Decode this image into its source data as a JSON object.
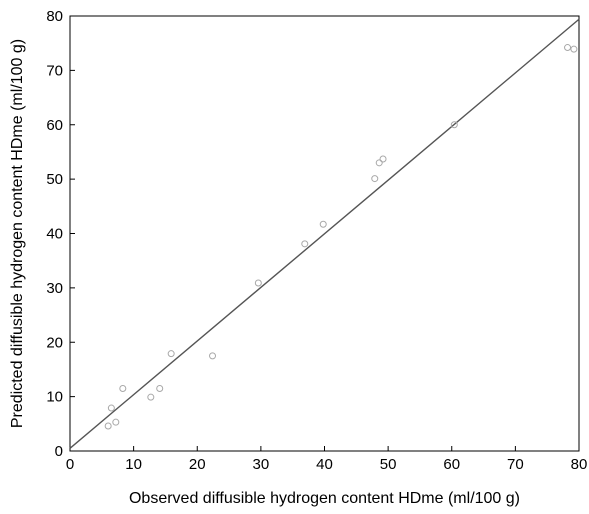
{
  "chart_data": {
    "type": "scatter",
    "title": "",
    "xlabel": "Observed diffusible hydrogen content HDme (ml/100 g)",
    "ylabel": "Predicted diffusible hydrogen content HDme (ml/100 g)",
    "xlim": [
      0,
      80
    ],
    "ylim": [
      0,
      80
    ],
    "x_ticks": [
      "0",
      "10",
      "20",
      "30",
      "40",
      "50",
      "60",
      "70",
      "80"
    ],
    "y_ticks": [
      "0",
      "10",
      "20",
      "30",
      "40",
      "50",
      "60",
      "70",
      "80"
    ],
    "grid": false,
    "legend": "none",
    "series": [
      {
        "points": [
          {
            "x": 6.0,
            "y": 4.6
          },
          {
            "x": 6.5,
            "y": 7.9
          },
          {
            "x": 7.2,
            "y": 5.3
          },
          {
            "x": 8.3,
            "y": 11.5
          },
          {
            "x": 12.7,
            "y": 9.9
          },
          {
            "x": 14.1,
            "y": 11.5
          },
          {
            "x": 15.9,
            "y": 17.9
          },
          {
            "x": 22.4,
            "y": 17.5
          },
          {
            "x": 29.6,
            "y": 30.9
          },
          {
            "x": 36.9,
            "y": 38.1
          },
          {
            "x": 39.8,
            "y": 41.7
          },
          {
            "x": 47.9,
            "y": 50.1
          },
          {
            "x": 48.6,
            "y": 53.0
          },
          {
            "x": 49.2,
            "y": 53.7
          },
          {
            "x": 60.4,
            "y": 60.0
          },
          {
            "x": 78.2,
            "y": 74.2
          },
          {
            "x": 79.2,
            "y": 73.9
          }
        ]
      }
    ],
    "fit_line": {
      "x": [
        0,
        80
      ],
      "y": [
        0.5,
        79.4
      ]
    },
    "colors": {
      "points": "#a8a8a8",
      "line": "#555555",
      "axes": "#000000"
    }
  }
}
